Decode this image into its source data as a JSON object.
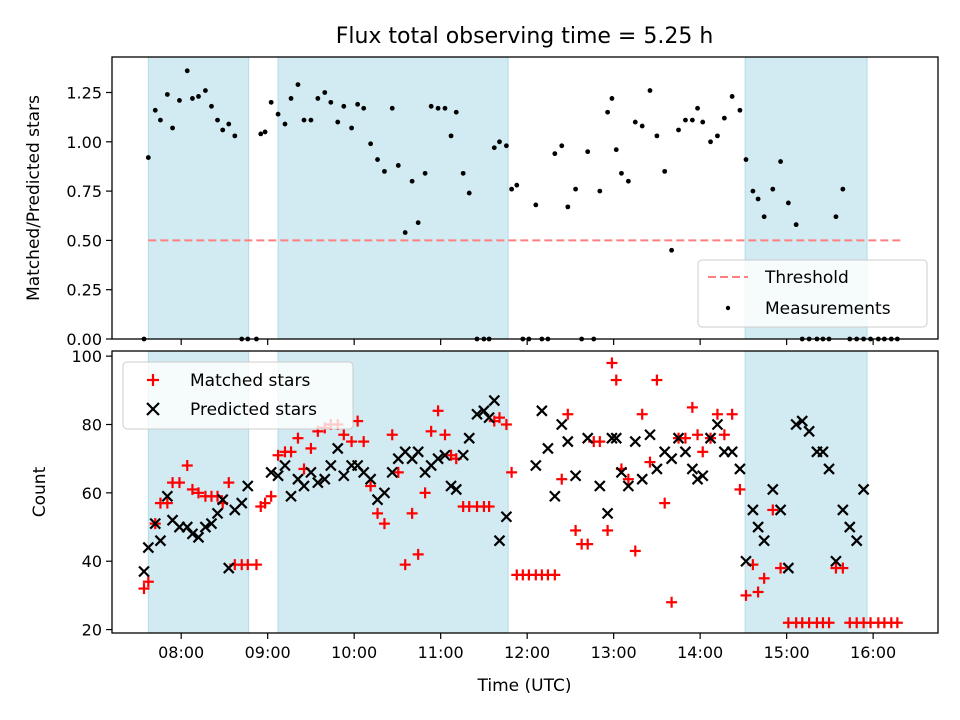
{
  "chart_data": [
    {
      "type": "scatter",
      "title": "Flux total observing time = 5.25 h",
      "xlabel": "",
      "ylabel": "Matched/Predicted stars",
      "xlim": [
        7.2,
        16.75
      ],
      "ylim": [
        0,
        1.43
      ],
      "yticks": [
        0,
        0.25,
        0.5,
        0.75,
        1.0,
        1.25
      ],
      "ytick_labels": [
        "0.00",
        "0.25",
        "0.50",
        "0.75",
        "1.00",
        "1.25"
      ],
      "shaded_intervals": [
        [
          7.62,
          8.78
        ],
        [
          9.12,
          11.78
        ],
        [
          14.52,
          15.93
        ]
      ],
      "shade_color": "#add8e6",
      "threshold": {
        "name": "Threshold",
        "value": 0.5,
        "x_range": [
          7.62,
          16.35
        ],
        "color": "#ff7f7f"
      },
      "series": [
        {
          "name": "Measurements",
          "color": "#000000",
          "marker": "dot",
          "x": [
            7.57,
            7.62,
            7.7,
            7.76,
            7.84,
            7.9,
            7.98,
            8.07,
            8.13,
            8.2,
            8.28,
            8.35,
            8.42,
            8.48,
            8.55,
            8.62,
            8.7,
            8.77,
            8.87,
            8.92,
            8.97,
            9.04,
            9.12,
            9.2,
            9.27,
            9.35,
            9.42,
            9.5,
            9.58,
            9.66,
            9.73,
            9.81,
            9.88,
            9.97,
            10.04,
            10.11,
            10.19,
            10.27,
            10.35,
            10.44,
            10.51,
            10.59,
            10.67,
            10.74,
            10.82,
            10.89,
            10.97,
            11.05,
            11.12,
            11.18,
            11.26,
            11.33,
            11.42,
            11.5,
            11.56,
            11.62,
            11.68,
            11.76,
            11.82,
            11.88,
            11.95,
            12.02,
            12.1,
            12.17,
            12.24,
            12.32,
            12.4,
            12.47,
            12.56,
            12.63,
            12.7,
            12.77,
            12.84,
            12.93,
            12.98,
            13.03,
            13.09,
            13.17,
            13.25,
            13.33,
            13.42,
            13.5,
            13.59,
            13.67,
            13.75,
            13.83,
            13.91,
            13.97,
            14.03,
            14.12,
            14.2,
            14.28,
            14.37,
            14.46,
            14.53,
            14.61,
            14.67,
            14.74,
            14.84,
            14.93,
            15.02,
            15.11,
            15.18,
            15.26,
            15.35,
            15.42,
            15.49,
            15.57,
            15.65,
            15.73,
            15.81,
            15.89,
            15.97,
            16.06,
            16.13,
            16.21,
            16.28
          ],
          "y": [
            0.0,
            0.92,
            1.16,
            1.11,
            1.24,
            1.07,
            1.21,
            1.36,
            1.22,
            1.23,
            1.26,
            1.18,
            1.11,
            1.06,
            1.09,
            1.03,
            0.0,
            0.0,
            0.0,
            1.04,
            1.05,
            1.2,
            1.14,
            1.09,
            1.22,
            1.29,
            1.11,
            1.11,
            1.22,
            1.25,
            1.2,
            1.1,
            1.18,
            1.07,
            1.19,
            1.17,
            0.99,
            0.91,
            0.85,
            1.17,
            0.88,
            0.54,
            0.8,
            0.59,
            0.84,
            1.18,
            1.17,
            1.17,
            1.03,
            1.15,
            0.84,
            0.74,
            0.0,
            0.0,
            0.0,
            0.97,
            1.0,
            0.98,
            0.76,
            0.78,
            0.0,
            0.0,
            0.68,
            0.0,
            0.0,
            0.94,
            0.98,
            0.67,
            0.76,
            0.0,
            0.95,
            0.0,
            0.75,
            1.15,
            1.22,
            0.96,
            0.84,
            0.8,
            1.1,
            1.08,
            1.26,
            1.03,
            0.85,
            0.45,
            1.06,
            1.11,
            1.11,
            1.17,
            1.1,
            1.0,
            1.03,
            1.12,
            1.23,
            1.16,
            0.91,
            0.75,
            0.71,
            0.62,
            0.76,
            0.9,
            0.69,
            0.58,
            0.0,
            0.0,
            0.0,
            0.0,
            0.0,
            0.62,
            0.76,
            0.0,
            0.0,
            0.0,
            0.0,
            0.0,
            0.0,
            0.0,
            0.0
          ]
        }
      ],
      "legend_placement": "lower right"
    },
    {
      "type": "scatter",
      "xlabel": "Time (UTC)",
      "ylabel": "Count",
      "xlim": [
        7.2,
        16.75
      ],
      "ylim": [
        19,
        101.5
      ],
      "xticks": [
        8,
        9,
        10,
        11,
        12,
        13,
        14,
        15,
        16
      ],
      "xtick_labels": [
        "08:00",
        "09:00",
        "10:00",
        "11:00",
        "12:00",
        "13:00",
        "14:00",
        "15:00",
        "16:00"
      ],
      "yticks": [
        20,
        40,
        60,
        80,
        100
      ],
      "ytick_labels": [
        "20",
        "40",
        "60",
        "80",
        "100"
      ],
      "shaded_intervals": [
        [
          7.62,
          8.78
        ],
        [
          9.12,
          11.78
        ],
        [
          14.52,
          15.93
        ]
      ],
      "shade_color": "#add8e6",
      "series": [
        {
          "name": "Matched stars",
          "color": "#ff0000",
          "marker": "plus",
          "x": [
            7.57,
            7.62,
            7.7,
            7.76,
            7.84,
            7.9,
            7.98,
            8.07,
            8.13,
            8.2,
            8.28,
            8.35,
            8.42,
            8.48,
            8.55,
            8.62,
            8.7,
            8.77,
            8.87,
            8.92,
            8.97,
            9.04,
            9.12,
            9.2,
            9.27,
            9.35,
            9.42,
            9.5,
            9.58,
            9.66,
            9.73,
            9.81,
            9.88,
            9.97,
            10.04,
            10.11,
            10.19,
            10.27,
            10.35,
            10.44,
            10.51,
            10.59,
            10.67,
            10.74,
            10.82,
            10.89,
            10.97,
            11.05,
            11.12,
            11.18,
            11.26,
            11.33,
            11.42,
            11.5,
            11.56,
            11.62,
            11.68,
            11.76,
            11.82,
            11.88,
            11.95,
            12.02,
            12.1,
            12.17,
            12.24,
            12.32,
            12.4,
            12.47,
            12.56,
            12.63,
            12.7,
            12.77,
            12.84,
            12.93,
            12.98,
            13.03,
            13.09,
            13.17,
            13.25,
            13.33,
            13.42,
            13.5,
            13.59,
            13.67,
            13.75,
            13.83,
            13.91,
            13.97,
            14.03,
            14.12,
            14.2,
            14.28,
            14.37,
            14.46,
            14.53,
            14.61,
            14.67,
            14.74,
            14.84,
            14.93,
            15.02,
            15.11,
            15.18,
            15.26,
            15.35,
            15.42,
            15.49,
            15.57,
            15.65,
            15.73,
            15.81,
            15.89,
            15.97,
            16.06,
            16.13,
            16.21,
            16.28
          ],
          "y": [
            32,
            34,
            51,
            57,
            57,
            63,
            63,
            68,
            61,
            60,
            59,
            59,
            59,
            57,
            63,
            39,
            39,
            39,
            39,
            56,
            57,
            59,
            71,
            72,
            72,
            76,
            67,
            73,
            78,
            79,
            80,
            80,
            77,
            75,
            81,
            75,
            62,
            54,
            51,
            77,
            66,
            39,
            54,
            42,
            60,
            78,
            84,
            77,
            71,
            70,
            56,
            56,
            56,
            56,
            56,
            81,
            82,
            80,
            66,
            36,
            36,
            36,
            36,
            36,
            36,
            36,
            64,
            83,
            49,
            45,
            45,
            75,
            75,
            49,
            98,
            93,
            67,
            64,
            43,
            83,
            69,
            93,
            57,
            28,
            76,
            76,
            85,
            77,
            72,
            76,
            83,
            77,
            83,
            61,
            30,
            39,
            31,
            35,
            55,
            38,
            22,
            22,
            22,
            22,
            22,
            22,
            22,
            38,
            38,
            22,
            22,
            22,
            22,
            22,
            22,
            22,
            22
          ],
          "shown": 70
        },
        {
          "name": "Predicted stars",
          "color": "#000000",
          "marker": "x",
          "x": [
            7.57,
            7.62,
            7.7,
            7.76,
            7.84,
            7.9,
            7.98,
            8.07,
            8.13,
            8.2,
            8.28,
            8.35,
            8.42,
            8.48,
            8.55,
            8.62,
            8.7,
            8.77,
            9.04,
            9.12,
            9.2,
            9.27,
            9.35,
            9.42,
            9.5,
            9.58,
            9.66,
            9.73,
            9.81,
            9.88,
            9.97,
            10.04,
            10.11,
            10.19,
            10.27,
            10.35,
            10.44,
            10.51,
            10.59,
            10.67,
            10.74,
            10.82,
            10.89,
            10.97,
            11.05,
            11.12,
            11.18,
            11.26,
            11.33,
            11.42,
            11.5,
            11.56,
            11.62,
            11.68,
            11.76,
            12.1,
            12.17,
            12.24,
            12.32,
            12.4,
            12.47,
            12.56,
            12.7,
            12.84,
            12.93,
            12.98,
            13.03,
            13.09,
            13.17,
            13.25,
            13.33,
            13.42,
            13.5,
            13.59,
            13.67,
            13.75,
            13.83,
            13.91,
            13.97,
            14.03,
            14.12,
            14.2,
            14.28,
            14.37,
            14.46,
            14.53,
            14.61,
            14.67,
            14.74,
            14.84,
            14.93,
            15.02,
            15.11,
            15.18,
            15.26,
            15.35,
            15.42,
            15.49,
            15.57,
            15.65,
            15.73,
            15.81,
            15.89
          ],
          "y": [
            37,
            44,
            51,
            46,
            59,
            52,
            50,
            50,
            48,
            47,
            50,
            51,
            54,
            58,
            38,
            55,
            57,
            62,
            66,
            65,
            68,
            59,
            64,
            62,
            66,
            63,
            64,
            68,
            73,
            65,
            68,
            68,
            66,
            64,
            58,
            60,
            66,
            70,
            72,
            70,
            72,
            66,
            68,
            70,
            71,
            62,
            61,
            71,
            76,
            83,
            84,
            82,
            87,
            46,
            53,
            68,
            84,
            73,
            59,
            80,
            75,
            65,
            76,
            62,
            54,
            76,
            76,
            66,
            62,
            75,
            64,
            77,
            67,
            72,
            70,
            76,
            72,
            67,
            64,
            65,
            76,
            80,
            72,
            72,
            67,
            40,
            55,
            50,
            46,
            61,
            55,
            38,
            80,
            81,
            78,
            72,
            72,
            67,
            40,
            55,
            50,
            46,
            61
          ]
        }
      ],
      "legend_placement": "upper left"
    }
  ]
}
